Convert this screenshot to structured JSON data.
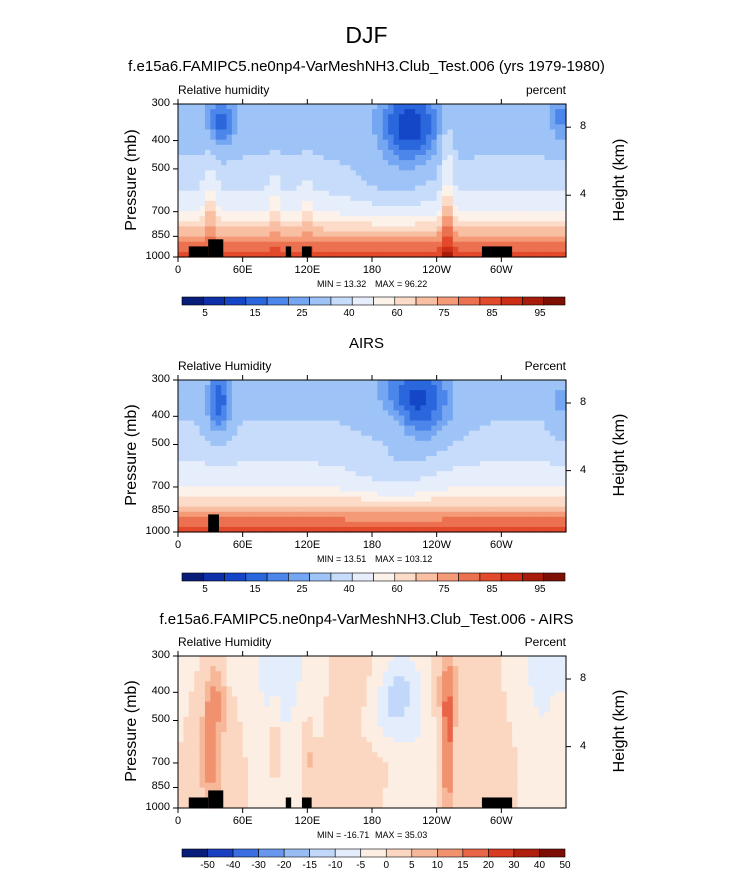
{
  "figure": {
    "title": "DJF"
  },
  "chart_data": [
    {
      "type": "heatmap",
      "title": "f.e15a6.FAMIPC5.ne0np4-VarMeshNH3.Club_Test.006 (yrs 1979-1980)",
      "left_label": "Relative humidity",
      "right_label": "percent",
      "ylabel": "Pressure (mb)",
      "ylabel_right": "Height (km)",
      "y_ticks": [
        "300",
        "400",
        "500",
        "700",
        "850",
        "1000"
      ],
      "y_ticks_right": [
        "8",
        "4"
      ],
      "x_ticks": [
        "0",
        "60E",
        "120E",
        "180",
        "120W",
        "60W"
      ],
      "min_label": "MIN = 13.32",
      "max_label": "MAX = 96.22",
      "colorbar_labels": [
        "5",
        "15",
        "25",
        "40",
        "60",
        "75",
        "85",
        "95"
      ]
    },
    {
      "type": "heatmap",
      "title": "AIRS",
      "left_label": "Relative Humidity",
      "right_label": "Percent",
      "ylabel": "Pressure (mb)",
      "ylabel_right": "Height (km)",
      "y_ticks": [
        "300",
        "400",
        "500",
        "700",
        "850",
        "1000"
      ],
      "y_ticks_right": [
        "8",
        "4"
      ],
      "x_ticks": [
        "0",
        "60E",
        "120E",
        "180",
        "120W",
        "60W"
      ],
      "min_label": "MIN = 13.51",
      "max_label": "MAX = 103.12",
      "colorbar_labels": [
        "5",
        "15",
        "25",
        "40",
        "60",
        "75",
        "85",
        "95"
      ]
    },
    {
      "type": "heatmap",
      "title": "f.e15a6.FAMIPC5.ne0np4-VarMeshNH3.Club_Test.006 - AIRS",
      "left_label": "Relative Humidity",
      "right_label": "Percent",
      "ylabel": "Pressure (mb)",
      "ylabel_right": "Height (km)",
      "y_ticks": [
        "300",
        "400",
        "500",
        "700",
        "850",
        "1000"
      ],
      "y_ticks_right": [
        "8",
        "4"
      ],
      "x_ticks": [
        "0",
        "60E",
        "120E",
        "180",
        "120W",
        "60W"
      ],
      "min_label": "MIN = -16.71",
      "max_label": "MAX = 35.03",
      "colorbar_labels": [
        "-50",
        "-40",
        "-30",
        "-20",
        "-15",
        "-10",
        "-5",
        "0",
        "5",
        "10",
        "15",
        "20",
        "30",
        "40",
        "50"
      ]
    }
  ],
  "colors": {
    "abs_scale": [
      "#081d7a",
      "#0d2fa8",
      "#1447c8",
      "#2a66dc",
      "#4c86ea",
      "#74a6f2",
      "#9ec3f7",
      "#c7dcfa",
      "#e6eefb",
      "#fdf2ea",
      "#fcdcc9",
      "#f9bfa3",
      "#f49a77",
      "#ec7150",
      "#e34a2c",
      "#cc2f15",
      "#a81c0b",
      "#7e0f05"
    ],
    "diff_scale": [
      "#081d7a",
      "#1a3fc0",
      "#3b6ee0",
      "#6a97ee",
      "#98bdf5",
      "#c2d8fa",
      "#e3edfc",
      "#fdeee4",
      "#fbd6c0",
      "#f7b89a",
      "#f1926f",
      "#e86548",
      "#d83a22",
      "#b01f0d",
      "#7c0e05"
    ],
    "land": "#000000"
  }
}
